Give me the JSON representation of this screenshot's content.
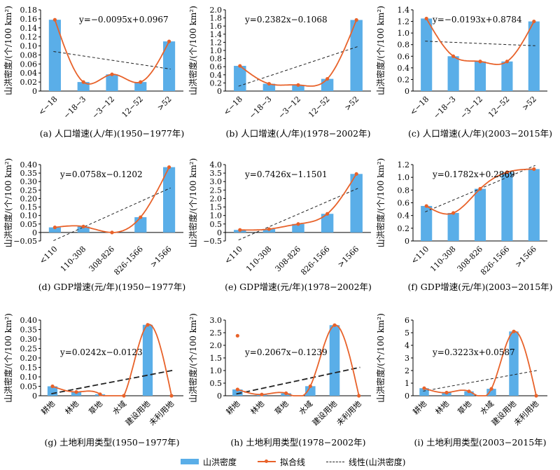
{
  "legend": {
    "bar": "山洪密度",
    "fit": "拟合线",
    "linear": "线性(山洪密度)"
  },
  "colors": {
    "bar": "#5aaee8",
    "fit": "#e8622a",
    "linear": "#222222"
  },
  "chart_data": [
    {
      "type": "bar",
      "caption": "(a) 人口增速(人/年)(1950−1977年)",
      "ylabel": "山洪密度/(个/100 km²)",
      "equation": "y=−0.0095x+0.0967",
      "categories": [
        "<−18",
        "−18−3",
        "−3−12",
        "12−52",
        ">52"
      ],
      "values": [
        0.158,
        0.02,
        0.037,
        0.02,
        0.11
      ],
      "ylim": [
        0,
        0.18
      ],
      "yticks": [
        "0",
        "0.02",
        "0.04",
        "0.06",
        "0.08",
        "0.10",
        "0.12",
        "0.14",
        "0.16",
        "0.18"
      ]
    },
    {
      "type": "bar",
      "caption": "(b) 人口增速(人/年)(1978−2002年)",
      "ylabel": "山洪密度/(个/100 km²)",
      "equation": "y=0.2382x−0.1068",
      "categories": [
        "<−18",
        "−18−3",
        "−3−12",
        "12−52",
        ">52"
      ],
      "values": [
        0.62,
        0.18,
        0.15,
        0.3,
        1.75
      ],
      "ylim": [
        0,
        2.0
      ],
      "yticks": [
        "0",
        "0.2",
        "0.4",
        "0.6",
        "0.8",
        "1.0",
        "1.2",
        "1.4",
        "1.6",
        "1.8",
        "2.0"
      ]
    },
    {
      "type": "bar",
      "caption": "(c) 人口增速(人/年)(2003−2015年)",
      "ylabel": "山洪密度/(个/100 km²)",
      "equation": "y=−0.0193x+0.8784",
      "categories": [
        "<−18",
        "−18−3",
        "−3−12",
        "12−52",
        ">52"
      ],
      "values": [
        1.25,
        0.6,
        0.51,
        0.51,
        1.2
      ],
      "ylim": [
        0,
        1.4
      ],
      "yticks": [
        "0",
        "0.2",
        "0.4",
        "0.6",
        "0.8",
        "1.0",
        "1.2",
        "1.4"
      ]
    },
    {
      "type": "bar",
      "caption": "(d) GDP增速(元/年)(1950−1977年)",
      "ylabel": "山洪密度/(个/100 km²)",
      "equation": "y=0.0758x−0.1202",
      "categories": [
        "<110",
        "110-308",
        "308-826",
        "826-1566",
        ">1566"
      ],
      "values": [
        0.03,
        0.035,
        0.0,
        0.09,
        0.385
      ],
      "ylim": [
        -0.05,
        0.4
      ],
      "yticks": [
        "−0.05",
        "0",
        "0.05",
        "0.10",
        "0.15",
        "0.20",
        "0.25",
        "0.30",
        "0.35",
        "0.40"
      ]
    },
    {
      "type": "bar",
      "caption": "(e) GDP增速(元/年)(1978−2002年)",
      "ylabel": "山洪密度/(个/100 km²)",
      "equation": "y=0.7426x−1.1501",
      "categories": [
        "<110",
        "110-308",
        "308-826",
        "826-1566",
        ">1566"
      ],
      "values": [
        0.15,
        0.2,
        0.5,
        1.1,
        3.45
      ],
      "ylim": [
        -0.5,
        4.0
      ],
      "yticks": [
        "−0.5",
        "0",
        "0.5",
        "1.0",
        "1.5",
        "2.0",
        "2.5",
        "3.0",
        "3.5",
        "4.0"
      ]
    },
    {
      "type": "bar",
      "caption": "(f) GDP增速(元/年)(2003−2015年)",
      "ylabel": "山洪密度/(个/100 km²)",
      "equation": "y=0.1782x+0.2869",
      "categories": [
        "<110",
        "110-308",
        "308-826",
        "826-1566",
        ">1566"
      ],
      "values": [
        0.55,
        0.44,
        0.82,
        1.08,
        1.13
      ],
      "ylim": [
        0,
        1.2
      ],
      "yticks": [
        "0",
        "0.2",
        "0.4",
        "0.6",
        "0.8",
        "1.0",
        "1.2"
      ]
    },
    {
      "type": "bar",
      "caption": "(g) 土地利用类型(1950−1977年)",
      "ylabel": "山洪密度/(个/100 km²)",
      "equation": "y=0.0242x−0.0123",
      "categories": [
        "耕地",
        "林地",
        "草地",
        "水域",
        "建设用地",
        "未利用地"
      ],
      "values": [
        0.05,
        0.02,
        0.008,
        0.0,
        0.375,
        0.0
      ],
      "ylim": [
        0,
        0.4
      ],
      "yticks": [
        "0",
        "0.05",
        "0.10",
        "0.15",
        "0.20",
        "0.25",
        "0.30",
        "0.35",
        "0.40"
      ],
      "linear_style": "heavy"
    },
    {
      "type": "bar",
      "caption": "(h) 土地利用类型(1978−2002年)",
      "ylabel": "山洪密度/(个/100 km²)",
      "equation": "y=0.2067x−0.1239",
      "categories": [
        "耕地",
        "林地",
        "草地",
        "水域",
        "建设用地",
        "未利用地"
      ],
      "values": [
        0.25,
        0.05,
        0.1,
        0.38,
        2.8,
        0.0
      ],
      "ylim": [
        0,
        3.0
      ],
      "yticks": [
        "0",
        "0.5",
        "1.0",
        "1.5",
        "2.0",
        "2.5",
        "3.0"
      ],
      "outlier": {
        "x_index": 0,
        "y": 2.38
      },
      "linear_style": "heavy"
    },
    {
      "type": "bar",
      "caption": "(i) 土地利用类型(2003−2015年)",
      "ylabel": "山洪密度/(个/100 km²)",
      "equation": "y=0.3223x+0.0587",
      "categories": [
        "耕地",
        "林地",
        "草地",
        "水域",
        "建设用地",
        "未利用地"
      ],
      "values": [
        0.6,
        0.25,
        0.35,
        0.55,
        5.1,
        0.0
      ],
      "ylim": [
        0,
        6
      ],
      "yticks": [
        "0",
        "1",
        "2",
        "3",
        "4",
        "5",
        "6"
      ]
    }
  ]
}
